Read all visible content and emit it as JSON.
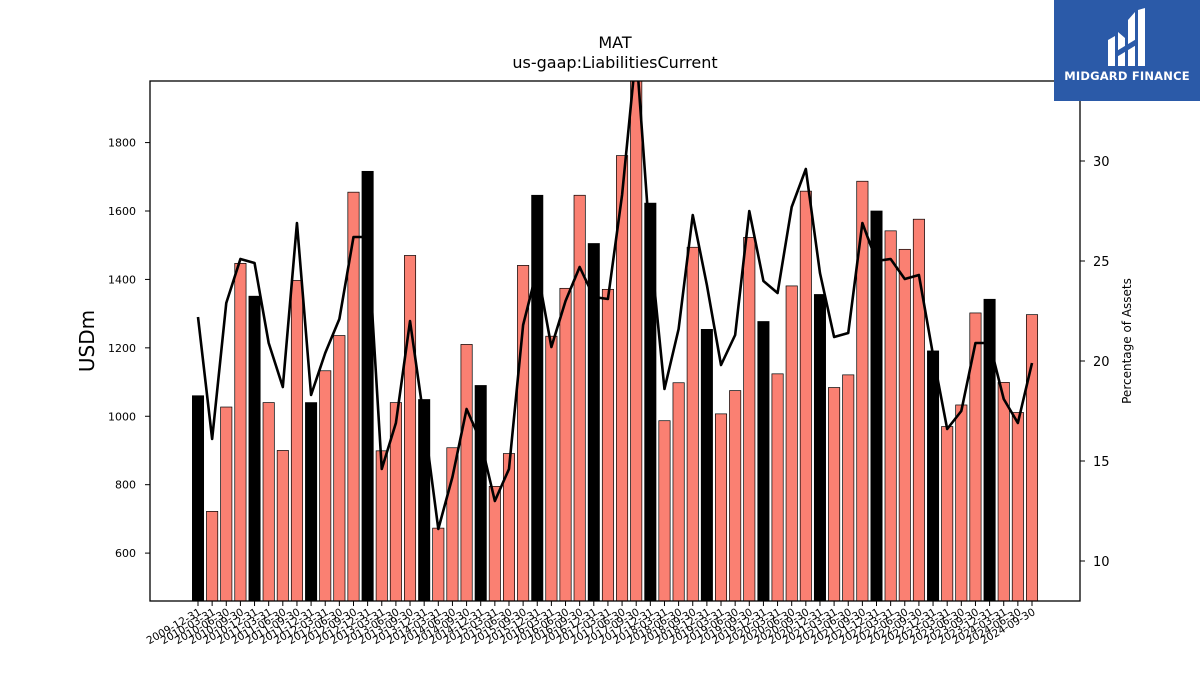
{
  "chart_data": {
    "type": "bar",
    "title": "MAT",
    "subtitle": "us-gaap:LiabilitiesCurrent",
    "ylabel": "USDm",
    "y2label": "Percentage of Assets",
    "ylim": [
      460,
      1980
    ],
    "y2lim": [
      8,
      34
    ],
    "yticks": [
      600,
      800,
      1000,
      1200,
      1400,
      1600,
      1800
    ],
    "y2ticks": [
      10,
      15,
      20,
      25,
      30
    ],
    "categories": [
      "2009-12-31",
      "2010-03-31",
      "2010-06-30",
      "2010-09-30",
      "2010-12-31",
      "2011-03-31",
      "2011-06-30",
      "2011-09-30",
      "2011-12-31",
      "2012-03-31",
      "2012-06-30",
      "2012-09-30",
      "2012-12-31",
      "2013-03-31",
      "2013-06-30",
      "2013-09-30",
      "2013-12-31",
      "2014-03-31",
      "2014-06-30",
      "2014-09-30",
      "2014-12-31",
      "2015-03-31",
      "2015-06-30",
      "2015-09-30",
      "2015-12-31",
      "2016-03-31",
      "2016-06-30",
      "2016-09-30",
      "2016-12-31",
      "2017-03-31",
      "2017-06-30",
      "2017-09-30",
      "2017-12-31",
      "2018-03-31",
      "2018-06-30",
      "2018-09-30",
      "2018-12-31",
      "2019-03-31",
      "2019-06-30",
      "2019-09-30",
      "2019-12-31",
      "2020-03-31",
      "2020-06-30",
      "2020-09-30",
      "2020-12-31",
      "2021-03-31",
      "2021-06-30",
      "2021-09-30",
      "2021-12-31",
      "2022-03-31",
      "2022-06-30",
      "2022-09-30",
      "2022-12-31",
      "2023-03-31",
      "2023-06-30",
      "2023-09-30",
      "2023-12-31",
      "2024-03-31",
      "2024-06-30",
      "2024-09-30"
    ],
    "series": [
      {
        "values": [
          1060,
          722,
          1027,
          1447,
          1351,
          1040,
          900,
          1397,
          1040,
          1133,
          1236,
          1655,
          1716,
          899,
          1040,
          1470,
          1049,
          673,
          908,
          1210,
          1090,
          795,
          891,
          1441,
          1646,
          1234,
          1374,
          1646,
          1505,
          1371,
          1762,
          2000,
          1623,
          987,
          1098,
          1494,
          1254,
          1007,
          1075,
          1523,
          1277,
          1124,
          1381,
          1658,
          1356,
          1084,
          1121,
          1687,
          1600,
          1542,
          1488,
          1576,
          1191,
          970,
          1033,
          1302,
          1342,
          1099,
          1011,
          1297
        ],
        "year_end_color": "#000000",
        "quarter_color": "#fa8072"
      },
      {
        "values": [
          22.2,
          16.1,
          22.9,
          25.1,
          24.9,
          20.9,
          18.7,
          26.9,
          18.3,
          20.4,
          22.1,
          26.2,
          26.2,
          14.6,
          16.9,
          22.0,
          17.0,
          11.6,
          14.2,
          17.6,
          16.0,
          13.0,
          14.6,
          21.8,
          24.6,
          20.7,
          23.0,
          24.7,
          23.2,
          23.1,
          28.3,
          35.5,
          25.7,
          18.6,
          21.6,
          27.3,
          23.8,
          19.8,
          21.3,
          27.5,
          24.0,
          23.4,
          27.7,
          29.6,
          24.4,
          21.2,
          21.4,
          26.9,
          25.0,
          25.1,
          24.1,
          24.3,
          20.3,
          16.6,
          17.5,
          20.9,
          20.9,
          18.1,
          16.9,
          19.9
        ],
        "axis": "right",
        "color": "#000000"
      }
    ]
  },
  "logo": {
    "text": "MIDGARD FINANCE",
    "color": "#2b5aa8"
  }
}
